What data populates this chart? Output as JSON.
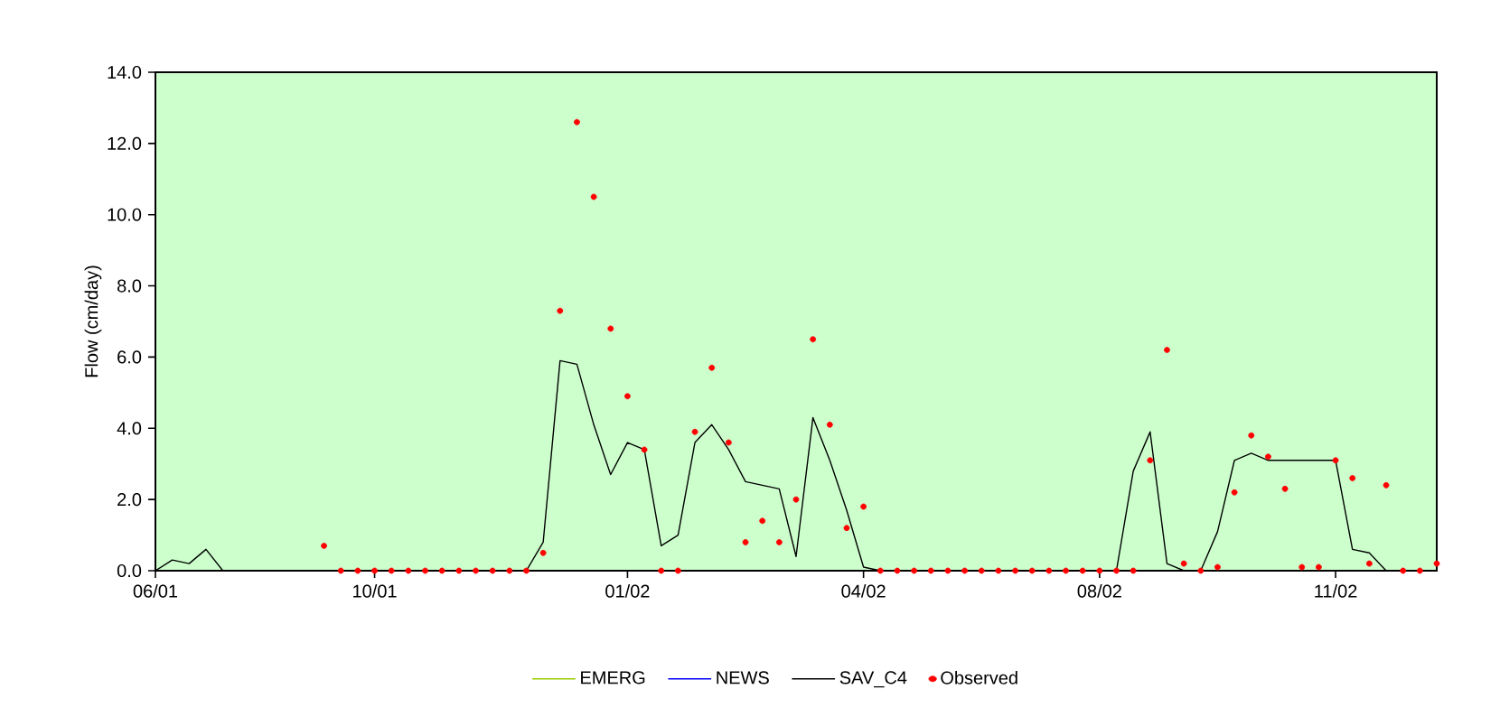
{
  "chart_data": {
    "type": "line",
    "ylabel": "Flow (cm/day)",
    "ylim": [
      0,
      14
    ],
    "categories": [
      "06/01",
      null,
      null,
      null,
      null,
      null,
      null,
      null,
      null,
      null,
      null,
      null,
      null,
      "10/01",
      null,
      null,
      null,
      null,
      null,
      null,
      null,
      null,
      null,
      null,
      null,
      null,
      null,
      null,
      "01/02",
      null,
      null,
      null,
      null,
      null,
      null,
      null,
      null,
      null,
      null,
      null,
      null,
      null,
      "04/02",
      null,
      null,
      null,
      null,
      null,
      null,
      null,
      null,
      null,
      null,
      null,
      null,
      null,
      "08/02",
      null,
      null,
      null,
      null,
      null,
      null,
      null,
      null,
      null,
      null,
      null,
      null,
      null,
      "11/02",
      null,
      null,
      null,
      null,
      null,
      null
    ],
    "yticks": [
      {
        "value": 0,
        "label": "0.0"
      },
      {
        "value": 2,
        "label": "2.0"
      },
      {
        "value": 4,
        "label": "4.0"
      },
      {
        "value": 6,
        "label": "6.0"
      },
      {
        "value": 8,
        "label": "8.0"
      },
      {
        "value": 10,
        "label": "10.0"
      },
      {
        "value": 12,
        "label": "12.0"
      },
      {
        "value": 14,
        "label": "14.0"
      }
    ],
    "grid": false,
    "legend": "bottom",
    "series": [
      {
        "name": "EMERG",
        "color": "#99cc00",
        "values": [
          null,
          null,
          null,
          null,
          null,
          null,
          null,
          null,
          null,
          null,
          null,
          null,
          null,
          null,
          null,
          null,
          null,
          null,
          null,
          null,
          null,
          null,
          null,
          null,
          null,
          null,
          null,
          null,
          null,
          null,
          null,
          null,
          null,
          null,
          null,
          null,
          null,
          null,
          null,
          null,
          null,
          null,
          null,
          null,
          null,
          null,
          null,
          null,
          null,
          null,
          null,
          null,
          null,
          null,
          null,
          null,
          null,
          null,
          null,
          null,
          null,
          null,
          null,
          null,
          null,
          null,
          null,
          null,
          null,
          null,
          null,
          null,
          null,
          null,
          null,
          null,
          null
        ]
      },
      {
        "name": "NEWS",
        "color": "#0000ff",
        "values": [
          null,
          null,
          null,
          null,
          null,
          null,
          null,
          null,
          null,
          null,
          null,
          null,
          null,
          null,
          null,
          null,
          null,
          null,
          null,
          null,
          null,
          null,
          null,
          null,
          null,
          null,
          null,
          null,
          null,
          null,
          null,
          null,
          null,
          null,
          null,
          null,
          null,
          null,
          null,
          null,
          null,
          null,
          null,
          null,
          null,
          null,
          null,
          null,
          null,
          null,
          null,
          null,
          null,
          null,
          null,
          null,
          null,
          null,
          null,
          null,
          null,
          null,
          null,
          null,
          null,
          null,
          null,
          null,
          null,
          null,
          null,
          null,
          null,
          null,
          null,
          null,
          null
        ]
      },
      {
        "name": "SAV_C4",
        "color": "#000000",
        "values": [
          0,
          0.3,
          0.2,
          0.6,
          0,
          null,
          null,
          null,
          null,
          null,
          null,
          null,
          null,
          null,
          null,
          null,
          null,
          null,
          null,
          null,
          null,
          null,
          0,
          0.8,
          5.9,
          5.8,
          4.1,
          2.7,
          3.6,
          3.4,
          0.7,
          1.0,
          3.6,
          4.1,
          3.4,
          2.5,
          2.4,
          2.3,
          0.4,
          4.3,
          3.1,
          1.7,
          0.1,
          0,
          0,
          0,
          0,
          0,
          0,
          0,
          0,
          0,
          0,
          0,
          0,
          0,
          0,
          0,
          2.8,
          3.9,
          0.2,
          0,
          0,
          1.1,
          3.1,
          3.3,
          3.1,
          3.1,
          3.1,
          3.1,
          3.1,
          0.6,
          0.5,
          0,
          null,
          null,
          null
        ]
      },
      {
        "name": "Observed",
        "color": "#ff0000",
        "type": "scatter",
        "marker": "circle",
        "values": [
          null,
          null,
          null,
          null,
          null,
          null,
          null,
          null,
          null,
          null,
          0.7,
          0,
          0,
          0,
          0,
          0,
          0,
          0,
          0,
          0,
          0,
          0,
          0,
          0.5,
          7.3,
          12.6,
          10.5,
          6.8,
          4.9,
          3.4,
          0,
          0,
          3.9,
          5.7,
          3.6,
          0.8,
          1.4,
          0.8,
          2.0,
          6.5,
          4.1,
          1.2,
          1.8,
          0,
          0,
          0,
          0,
          0,
          0,
          0,
          0,
          0,
          0,
          0,
          0,
          0,
          0,
          0,
          0,
          3.1,
          6.2,
          0.2,
          0,
          0.1,
          2.2,
          3.8,
          3.2,
          2.3,
          0.1,
          0.1,
          3.1,
          2.6,
          0.2,
          2.4,
          0,
          0,
          0.2
        ]
      }
    ]
  }
}
